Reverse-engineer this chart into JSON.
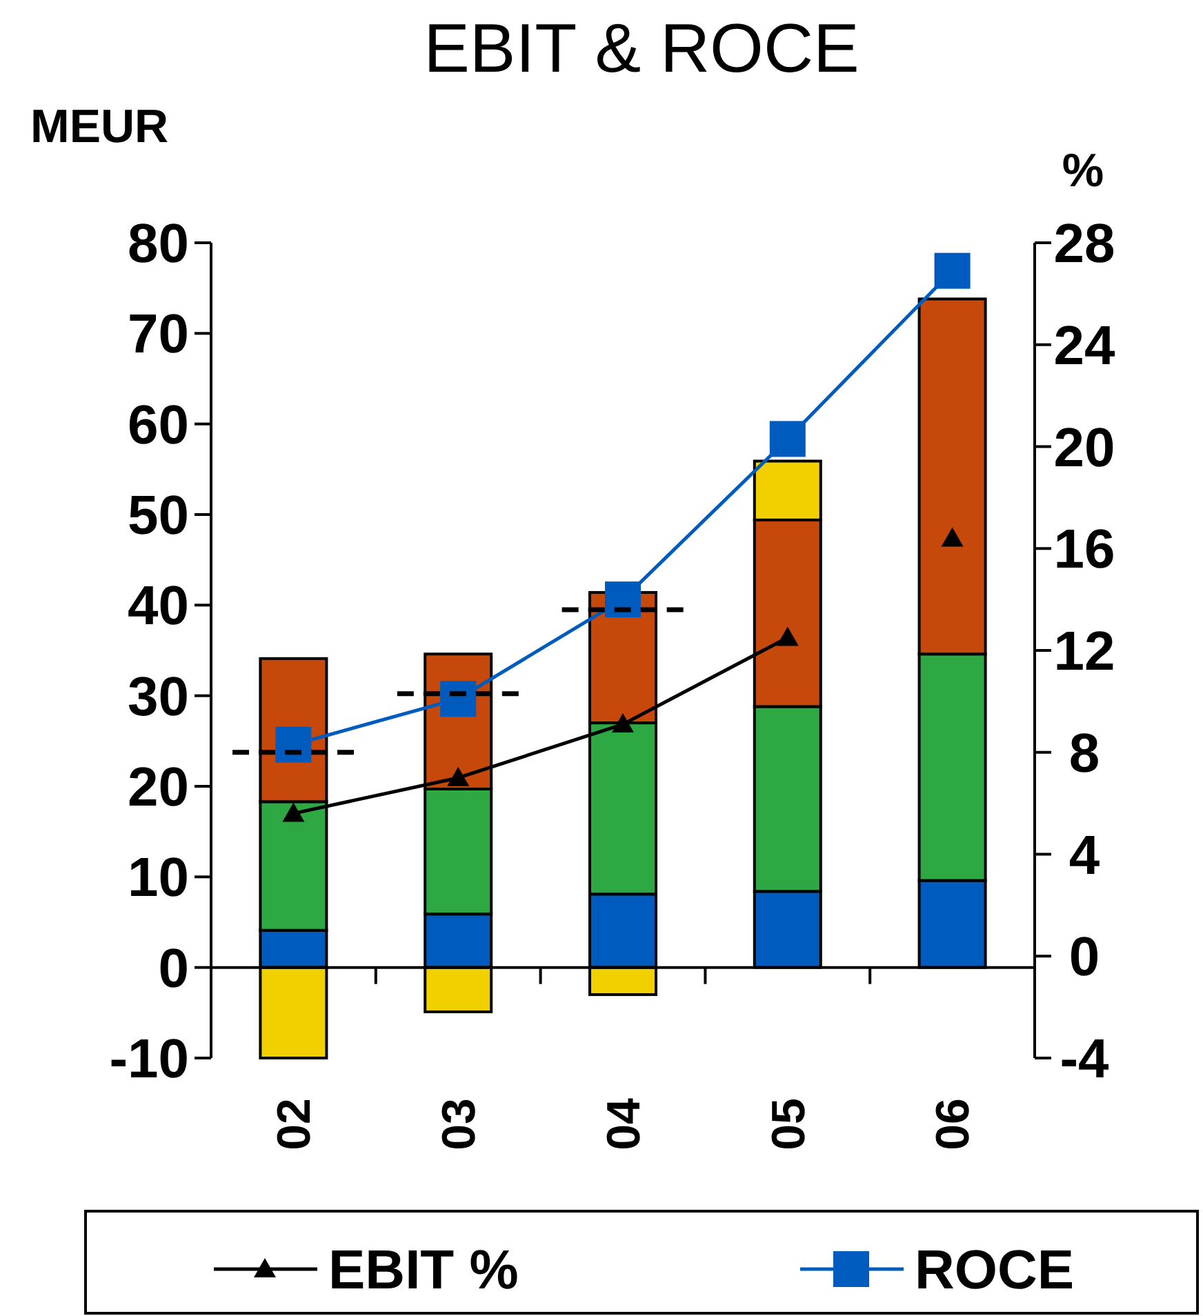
{
  "chart_data": {
    "type": "bar",
    "title": "EBIT & ROCE",
    "ylabel": "MEUR",
    "y2label": "%",
    "x": [
      2,
      3,
      4,
      5,
      6
    ],
    "xlim": [
      1.5,
      6.5
    ],
    "xticks": [
      {
        "value": 1.5,
        "label": null
      },
      {
        "value": 2,
        "label": "02"
      },
      {
        "value": 2.5,
        "label": null
      },
      {
        "value": 3,
        "label": "03"
      },
      {
        "value": 3.5,
        "label": null
      },
      {
        "value": 4,
        "label": "04"
      },
      {
        "value": 4.5,
        "label": null
      },
      {
        "value": 5,
        "label": "05"
      },
      {
        "value": 5.5,
        "label": null
      },
      {
        "value": 6,
        "label": "06"
      },
      {
        "value": 6.5,
        "label": null
      }
    ],
    "stacked": true,
    "legend": "bottom",
    "ylim": [
      -10,
      80
    ],
    "yticks": [
      -10,
      0,
      10,
      20,
      30,
      40,
      50,
      60,
      70,
      80
    ],
    "y2lim": [
      -4,
      28
    ],
    "y2ticks": [
      -4,
      0,
      4,
      8,
      12,
      16,
      20,
      24,
      28
    ],
    "series": [
      {
        "color": "#005bbf",
        "values": [
          4.1,
          5.9,
          8.1,
          8.4,
          9.6
        ]
      },
      {
        "color": "#2ea843",
        "values": [
          14.2,
          13.8,
          18.9,
          20.4,
          25.0
        ]
      },
      {
        "color": "#c6490b",
        "values": [
          15.8,
          14.9,
          14.4,
          20.6,
          39.2
        ]
      },
      {
        "color": "#f2d000",
        "values": [
          -10.0,
          -4.9,
          -3.0,
          6.5,
          null
        ]
      },
      {
        "type": "line",
        "axis": "y2",
        "name": "EBIT %",
        "marker": "triangle",
        "color": "#000000",
        "values": [
          5.6,
          7.0,
          9.1,
          12.5,
          null
        ]
      },
      {
        "type": "scatter",
        "axis": "y2",
        "marker": "triangle",
        "color": "#000000",
        "values": [
          null,
          null,
          null,
          null,
          16.4
        ]
      },
      {
        "type": "line",
        "axis": "y2",
        "name": "ROCE",
        "marker": "square",
        "color": "#005bbf",
        "values": [
          8.3,
          10.1,
          14.0,
          20.3,
          26.9
        ]
      },
      {
        "type": "line",
        "axis": "y2",
        "line_style": "dashed",
        "color": "#000000",
        "x": [
          1.63,
          2.37
        ],
        "values": [
          8.0,
          8.0
        ]
      },
      {
        "type": "line",
        "axis": "y2",
        "line_style": "dashed",
        "color": "#000000",
        "x": [
          2.63,
          3.37
        ],
        "values": [
          10.3,
          10.3
        ]
      },
      {
        "type": "line",
        "axis": "y2",
        "line_style": "dashed",
        "color": "#000000",
        "x": [
          3.63,
          4.37
        ],
        "values": [
          13.6,
          13.6
        ]
      }
    ]
  }
}
